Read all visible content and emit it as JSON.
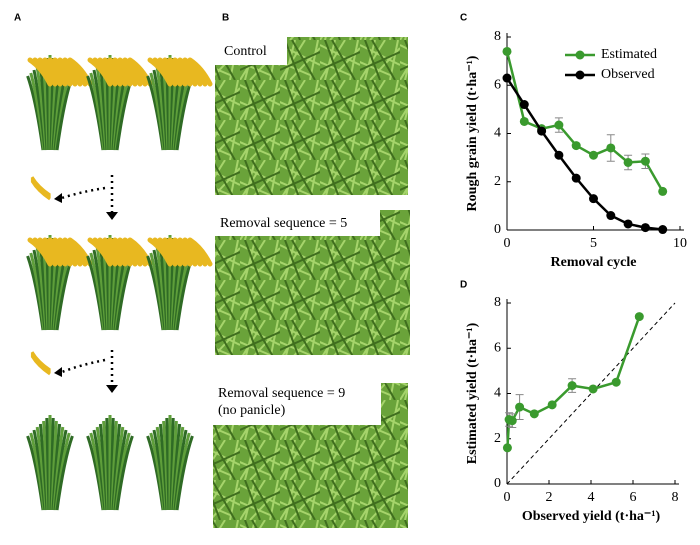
{
  "panel_labels": [
    "A",
    "B",
    "C",
    "D"
  ],
  "photo_captions": [
    [
      "Control"
    ],
    [
      "Removal sequence = 5"
    ],
    [
      "Removal sequence = 9",
      "(no panicle)"
    ]
  ],
  "chart_data": [
    {
      "type": "line",
      "x_label": "Removal cycle",
      "y_label": "Rough grain yield (t·ha⁻¹)",
      "x": [
        0,
        1,
        2,
        3,
        4,
        5,
        6,
        7,
        8,
        9
      ],
      "xlim": [
        0,
        10
      ],
      "xticks": [
        0,
        5,
        10
      ],
      "ylim": [
        0,
        8
      ],
      "yticks": [
        0,
        2,
        4,
        6,
        8
      ],
      "legend": "upper right",
      "series": [
        {
          "name": "Estimated",
          "color": "#3a9a2e",
          "values": [
            7.4,
            4.5,
            4.2,
            4.35,
            3.5,
            3.1,
            3.4,
            2.8,
            2.85,
            1.6
          ],
          "errors": [
            null,
            null,
            null,
            0.3,
            null,
            null,
            0.55,
            0.3,
            0.3,
            null
          ]
        },
        {
          "name": "Observed",
          "color": "#000000",
          "values": [
            6.3,
            5.2,
            4.1,
            3.1,
            2.15,
            1.3,
            0.6,
            0.25,
            0.1,
            0.02
          ]
        }
      ]
    },
    {
      "type": "scatter",
      "x_label": "Observed yield (t·ha⁻¹)",
      "y_label": "Estimated yield (t·ha⁻¹)",
      "xlim": [
        0,
        8
      ],
      "xticks": [
        0,
        2,
        4,
        6,
        8
      ],
      "ylim": [
        0,
        8
      ],
      "yticks": [
        0,
        2,
        4,
        6,
        8
      ],
      "x": [
        6.3,
        5.2,
        4.1,
        3.1,
        2.15,
        1.3,
        0.6,
        0.25,
        0.1,
        0.02
      ],
      "color": "#3a9a2e",
      "values": [
        7.4,
        4.5,
        4.2,
        4.35,
        3.5,
        3.1,
        3.4,
        2.8,
        2.85,
        1.6
      ],
      "errors": [
        null,
        null,
        null,
        0.3,
        null,
        null,
        0.55,
        0.3,
        0.3,
        null
      ]
    }
  ]
}
